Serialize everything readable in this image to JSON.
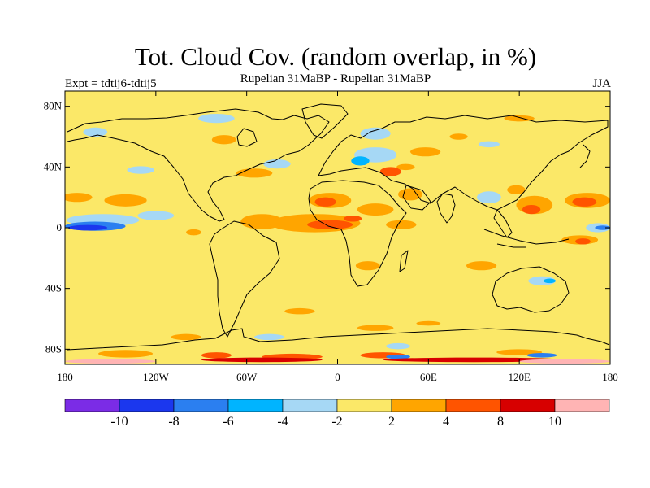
{
  "header": {
    "title": "Tot. Cloud Cov. (random overlap, in %)",
    "subtitle": "Rupelian  31MaBP - Rupelian  31MaBP",
    "experiment": "Expt = tdtij6-tdtij5",
    "season": "JJA"
  },
  "map": {
    "projection": "cylindrical-equidistant",
    "lon_range": [
      -180,
      180
    ],
    "lat_range": [
      -90,
      90
    ],
    "y_ticks": [
      {
        "lat": 80,
        "label": "80N"
      },
      {
        "lat": 40,
        "label": "40N"
      },
      {
        "lat": 0,
        "label": "0"
      },
      {
        "lat": -40,
        "label": "40S"
      },
      {
        "lat": -80,
        "label": "80S"
      }
    ],
    "x_ticks": [
      {
        "lon": -180,
        "label": "180"
      },
      {
        "lon": -120,
        "label": "120W"
      },
      {
        "lon": -60,
        "label": "60W"
      },
      {
        "lon": 0,
        "label": "0"
      },
      {
        "lon": 60,
        "label": "60E"
      },
      {
        "lon": 120,
        "label": "120E"
      },
      {
        "lon": 180,
        "label": "180"
      }
    ],
    "background_class": "-2 to 2",
    "anomaly_regions": [
      {
        "lon": -172,
        "lat": 20,
        "rx": 10,
        "ry": 3,
        "level": "2 to 4"
      },
      {
        "lon": -140,
        "lat": 18,
        "rx": 14,
        "ry": 4,
        "level": "2 to 4"
      },
      {
        "lon": -155,
        "lat": 5,
        "rx": 24,
        "ry": 4,
        "level": "-4 to -2"
      },
      {
        "lon": -160,
        "lat": 1,
        "rx": 20,
        "ry": 3,
        "level": "-8 to -6"
      },
      {
        "lon": -165,
        "lat": 0,
        "rx": 13,
        "ry": 1.8,
        "level": "-10 to -8"
      },
      {
        "lon": -120,
        "lat": 8,
        "rx": 12,
        "ry": 3,
        "level": "-4 to -2"
      },
      {
        "lon": -95,
        "lat": -3,
        "rx": 5,
        "ry": 2,
        "level": "2 to 4"
      },
      {
        "lon": -50,
        "lat": 4,
        "rx": 14,
        "ry": 5,
        "level": "2 to 4"
      },
      {
        "lon": -15,
        "lat": 3,
        "rx": 30,
        "ry": 6,
        "level": "2 to 4"
      },
      {
        "lon": -5,
        "lat": 2,
        "rx": 15,
        "ry": 3,
        "level": "4 to 8"
      },
      {
        "lon": -5,
        "lat": 18,
        "rx": 14,
        "ry": 5,
        "level": "2 to 4"
      },
      {
        "lon": -8,
        "lat": 17,
        "rx": 7,
        "ry": 3,
        "level": "4 to 8"
      },
      {
        "lon": 10,
        "lat": 6,
        "rx": 6,
        "ry": 2,
        "level": "4 to 8"
      },
      {
        "lon": 25,
        "lat": 12,
        "rx": 12,
        "ry": 4,
        "level": "2 to 4"
      },
      {
        "lon": 48,
        "lat": 22,
        "rx": 8,
        "ry": 4,
        "level": "2 to 4"
      },
      {
        "lon": 42,
        "lat": 2,
        "rx": 10,
        "ry": 3,
        "level": "2 to 4"
      },
      {
        "lon": 25,
        "lat": 48,
        "rx": 14,
        "ry": 5,
        "level": "-4 to -2"
      },
      {
        "lon": 15,
        "lat": 44,
        "rx": 6,
        "ry": 3,
        "level": "-6 to -4"
      },
      {
        "lon": 35,
        "lat": 37,
        "rx": 7,
        "ry": 3,
        "level": "4 to 8"
      },
      {
        "lon": 45,
        "lat": 40,
        "rx": 6,
        "ry": 2,
        "level": "2 to 4"
      },
      {
        "lon": 25,
        "lat": 62,
        "rx": 10,
        "ry": 4,
        "level": "-4 to -2"
      },
      {
        "lon": 58,
        "lat": 50,
        "rx": 10,
        "ry": 3,
        "level": "2 to 4"
      },
      {
        "lon": -55,
        "lat": 36,
        "rx": 12,
        "ry": 3,
        "level": "2 to 4"
      },
      {
        "lon": -40,
        "lat": 42,
        "rx": 9,
        "ry": 3,
        "level": "-4 to -2"
      },
      {
        "lon": -130,
        "lat": 38,
        "rx": 9,
        "ry": 2.5,
        "level": "-4 to -2"
      },
      {
        "lon": -75,
        "lat": 58,
        "rx": 8,
        "ry": 3,
        "level": "2 to 4"
      },
      {
        "lon": -80,
        "lat": 72,
        "rx": 12,
        "ry": 3,
        "level": "-4 to -2"
      },
      {
        "lon": -160,
        "lat": 63,
        "rx": 8,
        "ry": 3,
        "level": "-4 to -2"
      },
      {
        "lon": 130,
        "lat": 15,
        "rx": 12,
        "ry": 6,
        "level": "2 to 4"
      },
      {
        "lon": 128,
        "lat": 12,
        "rx": 6,
        "ry": 3,
        "level": "4 to 8"
      },
      {
        "lon": 165,
        "lat": 18,
        "rx": 15,
        "ry": 5,
        "level": "2 to 4"
      },
      {
        "lon": 163,
        "lat": 17,
        "rx": 8,
        "ry": 3,
        "level": "4 to 8"
      },
      {
        "lon": 160,
        "lat": -8,
        "rx": 12,
        "ry": 3,
        "level": "2 to 4"
      },
      {
        "lon": 162,
        "lat": -9,
        "rx": 5,
        "ry": 2,
        "level": "4 to 8"
      },
      {
        "lon": 172,
        "lat": 0,
        "rx": 8,
        "ry": 3,
        "level": "-4 to -2"
      },
      {
        "lon": 175,
        "lat": 0,
        "rx": 5,
        "ry": 1.5,
        "level": "-8 to -6"
      },
      {
        "lon": 118,
        "lat": 25,
        "rx": 6,
        "ry": 3,
        "level": "2 to 4"
      },
      {
        "lon": 135,
        "lat": -35,
        "rx": 9,
        "ry": 3,
        "level": "-4 to -2"
      },
      {
        "lon": 140,
        "lat": -35,
        "rx": 4,
        "ry": 1.5,
        "level": "-6 to -4"
      },
      {
        "lon": 100,
        "lat": 20,
        "rx": 8,
        "ry": 4,
        "level": "-4 to -2"
      },
      {
        "lon": 80,
        "lat": 60,
        "rx": 6,
        "ry": 2,
        "level": "2 to 4"
      },
      {
        "lon": 100,
        "lat": 55,
        "rx": 7,
        "ry": 2,
        "level": "-4 to -2"
      },
      {
        "lon": 120,
        "lat": 72,
        "rx": 10,
        "ry": 2,
        "level": "2 to 4"
      },
      {
        "lon": 95,
        "lat": -25,
        "rx": 10,
        "ry": 3,
        "level": "2 to 4"
      },
      {
        "lon": 20,
        "lat": -25,
        "rx": 8,
        "ry": 3,
        "level": "2 to 4"
      },
      {
        "lon": -25,
        "lat": -55,
        "rx": 10,
        "ry": 2,
        "level": "2 to 4"
      },
      {
        "lon": 25,
        "lat": -66,
        "rx": 12,
        "ry": 2,
        "level": "2 to 4"
      },
      {
        "lon": -45,
        "lat": -72,
        "rx": 10,
        "ry": 2,
        "level": "-4 to -2"
      },
      {
        "lon": 40,
        "lat": -78,
        "rx": 8,
        "ry": 2,
        "level": "-4 to -2"
      },
      {
        "lon": 60,
        "lat": -63,
        "rx": 8,
        "ry": 1.5,
        "level": "2 to 4"
      },
      {
        "lon": -100,
        "lat": -72,
        "rx": 10,
        "ry": 2,
        "level": "2 to 4"
      },
      {
        "lon": -140,
        "lat": -83,
        "rx": 18,
        "ry": 2.5,
        "level": "2 to 4"
      },
      {
        "lon": -80,
        "lat": -84,
        "rx": 10,
        "ry": 2,
        "level": "4 to 8"
      },
      {
        "lon": 30,
        "lat": -84,
        "rx": 15,
        "ry": 2,
        "level": "4 to 8"
      },
      {
        "lon": 40,
        "lat": -85,
        "rx": 8,
        "ry": 1.5,
        "level": "-8 to -6"
      },
      {
        "lon": 120,
        "lat": -82,
        "rx": 15,
        "ry": 2,
        "level": "2 to 4"
      },
      {
        "lon": 135,
        "lat": -84,
        "rx": 10,
        "ry": 1.5,
        "level": "-8 to -6"
      },
      {
        "lon": -30,
        "lat": -85,
        "rx": 20,
        "ry": 2,
        "level": "4 to 8"
      },
      {
        "lon": -50,
        "lat": -87,
        "rx": 40,
        "ry": 1.5,
        "level": "8 to 10"
      },
      {
        "lon": 90,
        "lat": -87,
        "rx": 60,
        "ry": 1.5,
        "level": "8 to 10"
      },
      {
        "lon": -150,
        "lat": -88,
        "rx": 30,
        "ry": 1.5,
        "level": "> 10"
      },
      {
        "lon": 150,
        "lat": -88,
        "rx": 30,
        "ry": 1.5,
        "level": "> 10"
      }
    ]
  },
  "colorbar": {
    "classes": [
      {
        "range": "< -10",
        "color": "#7b2ce6"
      },
      {
        "range": "-10 to -8",
        "color": "#1b37ee"
      },
      {
        "range": "-8 to -6",
        "color": "#2b7ff0"
      },
      {
        "range": "-6 to -4",
        "color": "#00b4ff"
      },
      {
        "range": "-4 to -2",
        "color": "#a6d8f5"
      },
      {
        "range": "-2 to 2",
        "color": "#fbe868"
      },
      {
        "range": "2 to 4",
        "color": "#ffa500"
      },
      {
        "range": "4 to 8",
        "color": "#ff5400"
      },
      {
        "range": "8 to 10",
        "color": "#d70000"
      },
      {
        "range": "> 10",
        "color": "#ffb4b4"
      }
    ],
    "labels": [
      "-10",
      "-8",
      "-6",
      "-4",
      "-2",
      "2",
      "4",
      "8",
      "10"
    ]
  }
}
